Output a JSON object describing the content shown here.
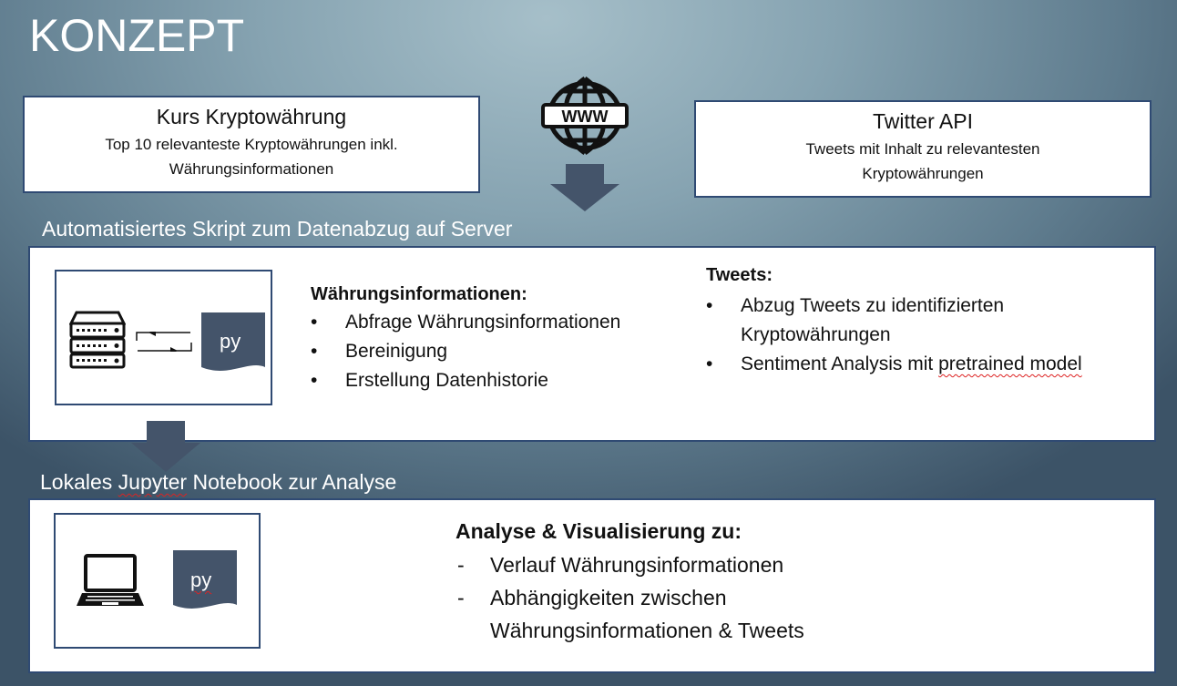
{
  "title": "KONZEPT",
  "sources": {
    "left": {
      "title": "Kurs Kryptowährung",
      "line1": "Top 10 relevanteste Kryptowährungen inkl.",
      "line2": "Währungsinformationen"
    },
    "right": {
      "title": "Twitter API",
      "line1": "Tweets mit Inhalt zu relevantesten",
      "line2": "Kryptowährungen"
    },
    "web_icon_label": "WWW"
  },
  "server": {
    "label": "Automatisiertes Skript zum Datenabzug auf Server",
    "py_label": "py",
    "currency": {
      "heading": "Währungsinformationen:",
      "items": [
        "Abfrage Währungsinformationen",
        "Bereinigung",
        "Erstellung Datenhistorie"
      ]
    },
    "tweets": {
      "heading": "Tweets:",
      "item1_line1": "Abzug Tweets zu identifizierten",
      "item1_line2": "Kryptowährungen",
      "item2_prefix": "Sentiment Analysis mit ",
      "item2_suffix": "pretrained model"
    }
  },
  "local": {
    "label_prefix": "Lokales ",
    "label_word": "Jupyter",
    "label_suffix": " Notebook zur Analyse",
    "py_label": "py",
    "heading": "Analyse & Visualisierung zu:",
    "item1": "Verlauf Währungsinformationen",
    "item2_line1": "Abhängigkeiten zwischen",
    "item2_line2": "Währungsinformationen & Tweets"
  },
  "colors": {
    "arrow": "#44546a",
    "box_border": "#2f4a73",
    "py_file": "#44546a"
  }
}
